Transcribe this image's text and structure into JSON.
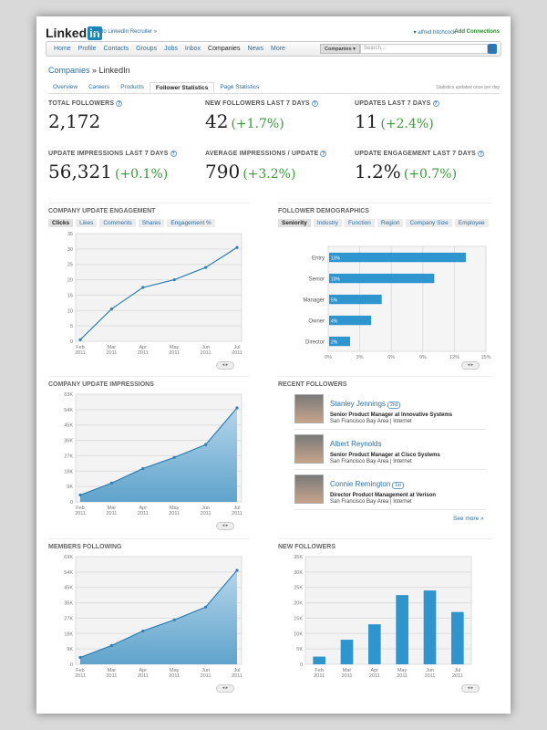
{
  "header": {
    "logo": "Linked",
    "logo_in": "in",
    "recruiter_link": "Go to LinkedIn Recruiter »",
    "user": "▾ alfred hitchcock",
    "add_connections": "Add Connections"
  },
  "nav": {
    "items": [
      "Home",
      "Profile",
      "Contacts",
      "Groups",
      "Jobs",
      "Inbox",
      "Companies",
      "News",
      "More"
    ],
    "search_scope": "Companies ▾",
    "search_placeholder": "Search..."
  },
  "breadcrumb": {
    "parent": "Companies",
    "sep": " » ",
    "current": "LinkedIn"
  },
  "tabs": [
    "Overview",
    "Careers",
    "Products",
    "Follower Statistics",
    "Page Statistics"
  ],
  "updated_note": "Statistics updated once per day",
  "stats": [
    {
      "label": "TOTAL FOLLOWERS",
      "value": "2,172",
      "change": ""
    },
    {
      "label": "NEW FOLLOWERS LAST 7 DAYS",
      "value": "42",
      "change": "(+1.7%)"
    },
    {
      "label": "UPDATES LAST 7 DAYS",
      "value": "11",
      "change": "(+2.4%)"
    },
    {
      "label": "UPDATE IMPRESSIONS LAST 7 DAYS",
      "value": "56,321",
      "change": "(+0.1%)"
    },
    {
      "label": "AVERAGE IMPRESSIONS / UPDATE",
      "value": "790",
      "change": "(+3.2%)"
    },
    {
      "label": "UPDATE ENGAGEMENT LAST 7 DAYS",
      "value": "1.2%",
      "change": "(+0.7%)"
    }
  ],
  "engagement": {
    "title": "COMPANY UPDATE ENGAGEMENT",
    "tabs": [
      "Clicks",
      "Likes",
      "Comments",
      "Shares",
      "Engagement %"
    ]
  },
  "demographics": {
    "title": "FOLLOWER DEMOGRAPHICS",
    "tabs": [
      "Seniority",
      "Industry",
      "Function",
      "Region",
      "Company Size",
      "Employee"
    ]
  },
  "recent": {
    "title": "RECENT FOLLOWERS",
    "see_more": "See more »",
    "followers": [
      {
        "name": "Stanley Jennings",
        "badge": "2nd",
        "title": "Senior Product Manager at Innovative Systems",
        "loc": "San Francisco Bay Area | Internet"
      },
      {
        "name": "Albert Reynolds",
        "badge": "",
        "title": "Senior Product Manager at Cisco Systems",
        "loc": "San Francisco Bay Area | Internet"
      },
      {
        "name": "Connie Remington",
        "badge": "1st",
        "title": "Director Product Management at Verison",
        "loc": "San Francisco Bay Area | Internet"
      }
    ]
  },
  "pager": "◂ ▸",
  "chart_data": [
    {
      "id": "engagement",
      "type": "line",
      "title": "COMPANY UPDATE ENGAGEMENT",
      "categories": [
        "Feb\n2011",
        "Mar\n2011",
        "Apr\n2011",
        "May\n2011",
        "Jun\n2011",
        "Jul\n2011"
      ],
      "values": [
        0.5,
        10.5,
        17.5,
        20,
        24,
        30.5
      ],
      "ylim": [
        0,
        35
      ],
      "yticks": [
        "0",
        "5",
        "10",
        "15",
        "20",
        "25",
        "30",
        "35"
      ],
      "grid": true
    },
    {
      "id": "demographics",
      "type": "bar",
      "orientation": "horizontal",
      "title": "FOLLOWER DEMOGRAPHICS",
      "categories": [
        "Entry",
        "Senior",
        "Manager",
        "Owner",
        "Director"
      ],
      "values": [
        13,
        10,
        5,
        4,
        2
      ],
      "labels": [
        "13%",
        "10%",
        "5%",
        "4%",
        "2%"
      ],
      "xlim": [
        0,
        15
      ],
      "xticks": [
        "0%",
        "3%",
        "6%",
        "9%",
        "12%",
        "15%"
      ]
    },
    {
      "id": "impressions",
      "type": "area",
      "title": "COMPANY UPDATE IMPRESSIONS",
      "categories": [
        "Feb\n2011",
        "Mar\n2011",
        "Apr\n2011",
        "May\n2011",
        "Jun\n2011",
        "Jul\n2011"
      ],
      "values": [
        4000,
        11000,
        19500,
        26000,
        33500,
        55000
      ],
      "ylim": [
        0,
        63000
      ],
      "yticks": [
        "0",
        "9K",
        "18K",
        "27K",
        "36K",
        "45K",
        "54K",
        "63K"
      ]
    },
    {
      "id": "members",
      "type": "area",
      "title": "MEMBERS FOLLOWING",
      "categories": [
        "Feb\n2011",
        "Mar\n2011",
        "Apr\n2011",
        "May\n2011",
        "Jun\n2011",
        "Jul\n2011"
      ],
      "values": [
        4000,
        11000,
        19500,
        26000,
        33500,
        55000
      ],
      "ylim": [
        0,
        63000
      ],
      "yticks": [
        "0",
        "9K",
        "18K",
        "27K",
        "36K",
        "45K",
        "54K",
        "63K"
      ]
    },
    {
      "id": "newfollowers",
      "type": "bar",
      "title": "NEW FOLLOWERS",
      "categories": [
        "Feb\n2011",
        "Mar\n2011",
        "Apr\n2011",
        "May\n2011",
        "Jun\n2011",
        "Jul\n2011"
      ],
      "values": [
        2500,
        8000,
        13000,
        22500,
        24000,
        17000
      ],
      "ylim": [
        0,
        35000
      ],
      "yticks": [
        "0",
        "5K",
        "10K",
        "15K",
        "20K",
        "25K",
        "30K",
        "35K"
      ]
    }
  ]
}
